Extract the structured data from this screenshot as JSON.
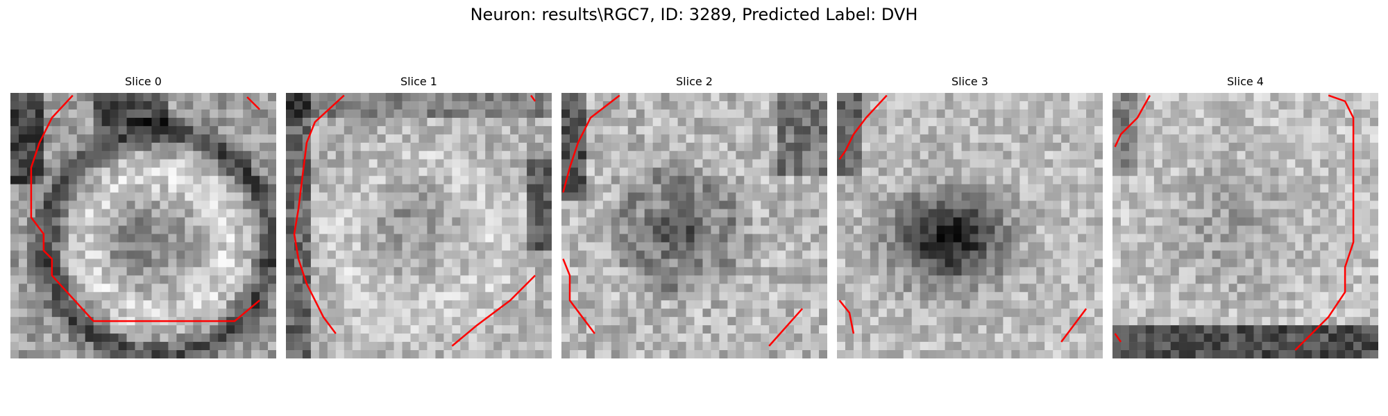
{
  "figure": {
    "title": "Neuron: results\\RGC7, ID: 3289, Predicted Label: DVH"
  },
  "colors": {
    "contour": "#ff0000",
    "background": "#ffffff"
  },
  "panels": [
    {
      "title": "Slice 0"
    },
    {
      "title": "Slice 1"
    },
    {
      "title": "Slice 2"
    },
    {
      "title": "Slice 3"
    },
    {
      "title": "Slice 4"
    }
  ]
}
